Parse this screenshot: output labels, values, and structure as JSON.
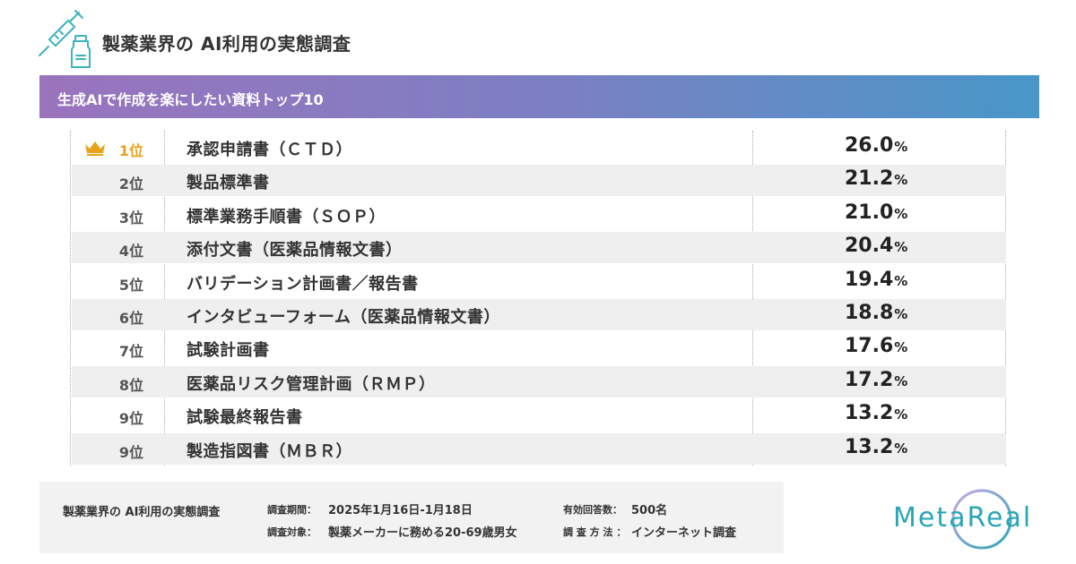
{
  "header": {
    "title": "製薬業界の AI利用の実態調査"
  },
  "banner": {
    "text": "生成AIで作成を楽にしたい資料トップ10"
  },
  "chart_data": {
    "type": "table",
    "title": "生成AIで作成を楽にしたい資料トップ10",
    "unit": "%",
    "rows": [
      {
        "rank": "1位",
        "name": "承認申請書（ＣＴＤ）",
        "value": "26.0"
      },
      {
        "rank": "2位",
        "name": "製品標準書",
        "value": "21.2"
      },
      {
        "rank": "3位",
        "name": "標準業務手順書（ＳＯＰ）",
        "value": "21.0"
      },
      {
        "rank": "4位",
        "name": "添付文書（医薬品情報文書）",
        "value": "20.4"
      },
      {
        "rank": "5位",
        "name": "バリデーション計画書／報告書",
        "value": "19.4"
      },
      {
        "rank": "6位",
        "name": "インタビューフォーム（医薬品情報文書）",
        "value": "18.8"
      },
      {
        "rank": "7位",
        "name": "試験計画書",
        "value": "17.6"
      },
      {
        "rank": "8位",
        "name": "医薬品リスク管理計画（ＲＭＰ）",
        "value": "17.2"
      },
      {
        "rank": "9位",
        "name": "試験最終報告書",
        "value": "13.2"
      },
      {
        "rank": "9位",
        "name": "製造指図書（ＭＢＲ）",
        "value": "13.2"
      }
    ]
  },
  "footer": {
    "survey_name": "製薬業界の AI利用の実態調査",
    "period_label": "調査期間：",
    "period_value": "2025年1月16日-1月18日",
    "target_label": "調査対象：",
    "target_value": "製薬メーカーに務める20-69歳男女",
    "responses_label": "有効回答数：",
    "responses_value": "500名",
    "method_label": "調 査 方 法 ：",
    "method_value": "インターネット調査"
  },
  "brand": {
    "name": "MetaReal"
  },
  "colors": {
    "banner_start": "#9a74bd",
    "banner_end": "#4897c7",
    "rank_first": "#e7a21b",
    "brand": "#2aa6b8",
    "row_shade": "#efefef"
  },
  "icons": {
    "header": "syringe-vial-icon",
    "first_rank": "crown-icon"
  }
}
